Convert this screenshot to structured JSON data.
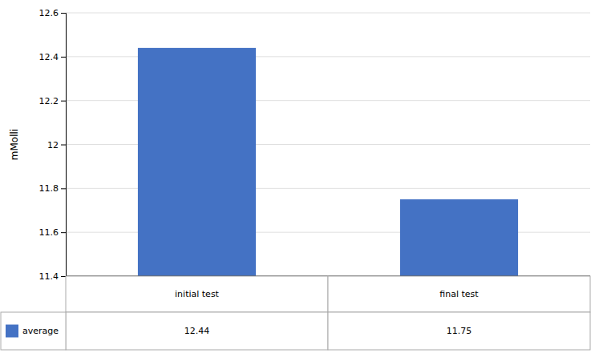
{
  "chart_data": {
    "type": "bar",
    "ylabel": "mMolli",
    "categories": [
      "initial test",
      "final test"
    ],
    "series": [
      {
        "name": "average",
        "color": "#4472c4",
        "values": [
          12.44,
          11.75
        ]
      }
    ],
    "ylim": [
      11.4,
      12.6
    ],
    "yticks": [
      11.4,
      11.6,
      11.8,
      12,
      12.2,
      12.4,
      12.6
    ],
    "grid": true,
    "legend": "bottom",
    "data_labels": true
  }
}
